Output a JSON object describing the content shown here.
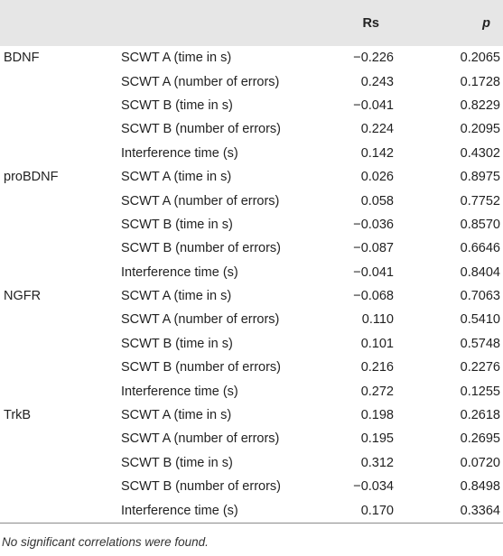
{
  "header": {
    "col_marker": "",
    "col_measure": "",
    "col_rs": "Rs",
    "col_p": "p"
  },
  "rows": [
    {
      "marker": "BDNF",
      "measure": "SCWT A (time in s)",
      "rs": "−0.226",
      "p": "0.2065"
    },
    {
      "marker": "",
      "measure": "SCWT A (number of errors)",
      "rs": "0.243",
      "p": "0.1728"
    },
    {
      "marker": "",
      "measure": "SCWT B (time in s)",
      "rs": "−0.041",
      "p": "0.8229"
    },
    {
      "marker": "",
      "measure": "SCWT B (number of errors)",
      "rs": "0.224",
      "p": "0.2095"
    },
    {
      "marker": "",
      "measure": "Interference time (s)",
      "rs": "0.142",
      "p": "0.4302"
    },
    {
      "marker": "proBDNF",
      "measure": "SCWT A (time in s)",
      "rs": "0.026",
      "p": "0.8975"
    },
    {
      "marker": "",
      "measure": "SCWT A (number of errors)",
      "rs": "0.058",
      "p": "0.7752"
    },
    {
      "marker": "",
      "measure": "SCWT B (time in s)",
      "rs": "−0.036",
      "p": "0.8570"
    },
    {
      "marker": "",
      "measure": "SCWT B (number of errors)",
      "rs": "−0.087",
      "p": "0.6646"
    },
    {
      "marker": "",
      "measure": "Interference time (s)",
      "rs": "−0.041",
      "p": "0.8404"
    },
    {
      "marker": "NGFR",
      "measure": "SCWT A (time in s)",
      "rs": "−0.068",
      "p": "0.7063"
    },
    {
      "marker": "",
      "measure": "SCWT A (number of errors)",
      "rs": "0.110",
      "p": "0.5410"
    },
    {
      "marker": "",
      "measure": "SCWT B (time in s)",
      "rs": "0.101",
      "p": "0.5748"
    },
    {
      "marker": "",
      "measure": "SCWT B (number of errors)",
      "rs": "0.216",
      "p": "0.2276"
    },
    {
      "marker": "",
      "measure": "Interference time (s)",
      "rs": "0.272",
      "p": "0.1255"
    },
    {
      "marker": "TrkB",
      "measure": "SCWT A (time in s)",
      "rs": "0.198",
      "p": "0.2618"
    },
    {
      "marker": "",
      "measure": "SCWT A (number of errors)",
      "rs": "0.195",
      "p": "0.2695"
    },
    {
      "marker": "",
      "measure": "SCWT B (time in s)",
      "rs": "0.312",
      "p": "0.0720"
    },
    {
      "marker": "",
      "measure": "SCWT B (number of errors)",
      "rs": "−0.034",
      "p": "0.8498"
    },
    {
      "marker": "",
      "measure": "Interference time (s)",
      "rs": "0.170",
      "p": "0.3364"
    }
  ],
  "footnote": "No significant correlations were found."
}
